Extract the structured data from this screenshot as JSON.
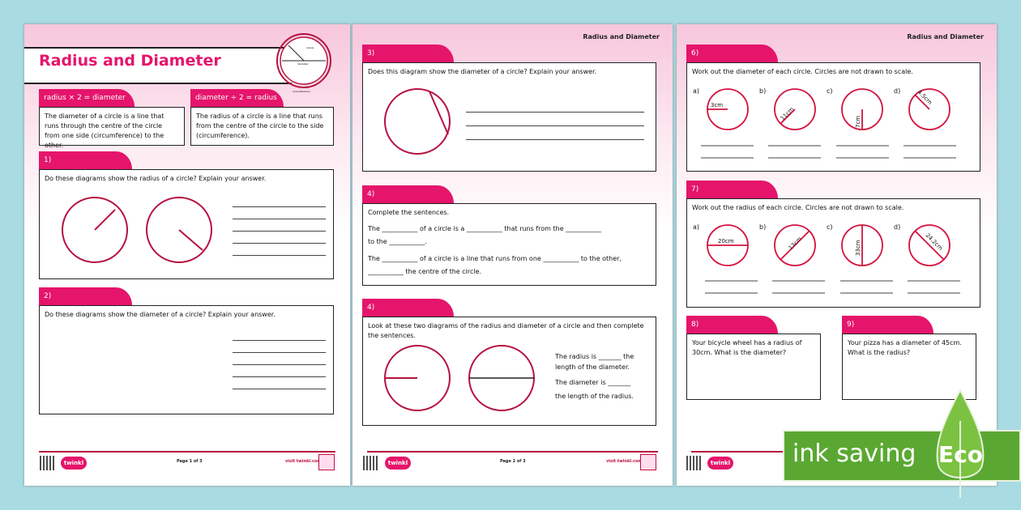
{
  "colors": {
    "accent": "#e5156b",
    "circle": "#b5123f",
    "eco_green": "#5aa832",
    "background": "#a9dbe3"
  },
  "page1": {
    "title": "Radius and Diameter",
    "diagram_labels": {
      "radius": "radius",
      "diameter": "diameter",
      "circumference": "circumference"
    },
    "fact1": {
      "tab": "radius × 2 = diameter",
      "text": "The diameter of a circle is a line that runs through the centre of the circle from one side (circumference) to the other."
    },
    "fact2": {
      "tab": "diameter ÷ 2 = radius",
      "text": "The radius of a circle is a line that runs from the centre of the circle to the side (circumference)."
    },
    "q1": {
      "num": "1)",
      "text": "Do these diagrams show the radius of a circle? Explain your answer."
    },
    "q2": {
      "num": "2)",
      "text": "Do these diagrams show the diameter of a circle? Explain your answer."
    },
    "footer": {
      "logo": "twinkl",
      "page": "Page 1 of 3",
      "visit": "visit twinkl.com"
    }
  },
  "page2": {
    "header": "Radius and Diameter",
    "q3": {
      "num": "3)",
      "text": "Does this diagram show the diameter of a circle? Explain your answer."
    },
    "q4": {
      "num": "4)",
      "intro": "Complete the sentences.",
      "s1a": "The ___________ of a circle is a ___________ that runs from the ___________",
      "s1b": "to the ___________.",
      "s2a": "The ___________ of a circle is a line that runs from one ___________ to the other,",
      "s2b": "___________ the centre of the circle."
    },
    "q5": {
      "num": "4)",
      "text": "Look at these two diagrams of the radius and diameter of a circle and then complete the sentences.",
      "s1a": "The radius is _______ the",
      "s1b": "length of the diameter.",
      "s2a": "The diameter is _______",
      "s2b": "the length of the radius."
    },
    "footer": {
      "logo": "twinkl",
      "page": "Page 2 of 3",
      "visit": "visit twinkl.com"
    }
  },
  "page3": {
    "header": "Radius and Diameter",
    "q6": {
      "num": "6)",
      "text": "Work out the diameter of each circle. Circles are not drawn to scale.",
      "items": [
        {
          "letter": "a)",
          "label": "3cm"
        },
        {
          "letter": "b)",
          "label": "11cm"
        },
        {
          "letter": "c)",
          "label": "7cm"
        },
        {
          "letter": "d)",
          "label": "4.5cm"
        }
      ]
    },
    "q7": {
      "num": "7)",
      "text": "Work out the radius of each circle. Circles are not drawn to scale.",
      "items": [
        {
          "letter": "a)",
          "label": "20cm"
        },
        {
          "letter": "b)",
          "label": "13cm"
        },
        {
          "letter": "c)",
          "label": "33cm"
        },
        {
          "letter": "d)",
          "label": "24.2cm"
        }
      ]
    },
    "q8": {
      "num": "8)",
      "text": "Your bicycle wheel has a radius of 30cm. What is the diameter?"
    },
    "q9": {
      "num": "9)",
      "text": "Your pizza has a diameter of 45cm. What is the radius?"
    },
    "footer": {
      "logo": "twinkl"
    }
  },
  "eco_badge": {
    "text": "ink saving",
    "eco": "Eco"
  }
}
